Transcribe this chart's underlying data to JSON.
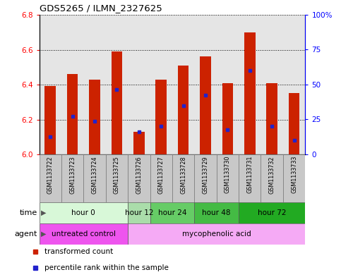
{
  "title": "GDS5265 / ILMN_2327625",
  "samples": [
    "GSM1133722",
    "GSM1133723",
    "GSM1133724",
    "GSM1133725",
    "GSM1133726",
    "GSM1133727",
    "GSM1133728",
    "GSM1133729",
    "GSM1133730",
    "GSM1133731",
    "GSM1133732",
    "GSM1133733"
  ],
  "bar_tops": [
    6.39,
    6.46,
    6.43,
    6.59,
    6.13,
    6.43,
    6.51,
    6.56,
    6.41,
    6.7,
    6.41,
    6.35
  ],
  "blue_marker_vals": [
    6.1,
    6.22,
    6.19,
    6.37,
    6.13,
    6.16,
    6.28,
    6.34,
    6.14,
    6.48,
    6.16,
    6.08
  ],
  "bar_bottom": 6.0,
  "ylim": [
    6.0,
    6.8
  ],
  "yticks_left": [
    6.0,
    6.2,
    6.4,
    6.6,
    6.8
  ],
  "yticks_right": [
    0,
    25,
    50,
    75,
    100
  ],
  "ytick_right_labels": [
    "0",
    "25",
    "50",
    "75",
    "100%"
  ],
  "bar_color": "#cc2200",
  "blue_color": "#2222cc",
  "col_bg": "#d0d0d0",
  "time_groups": [
    {
      "label": "hour 0",
      "start": 0,
      "end": 4,
      "color": "#d8f8d8"
    },
    {
      "label": "hour 12",
      "start": 4,
      "end": 5,
      "color": "#aaeaaa"
    },
    {
      "label": "hour 24",
      "start": 5,
      "end": 7,
      "color": "#66dd66"
    },
    {
      "label": "hour 48",
      "start": 7,
      "end": 9,
      "color": "#44cc44"
    },
    {
      "label": "hour 72",
      "start": 9,
      "end": 12,
      "color": "#22bb22"
    }
  ],
  "agent_groups": [
    {
      "label": "untreated control",
      "start": 0,
      "end": 4,
      "color": "#ee55ee"
    },
    {
      "label": "mycophenolic acid",
      "start": 4,
      "end": 12,
      "color": "#f0a0f0"
    }
  ]
}
